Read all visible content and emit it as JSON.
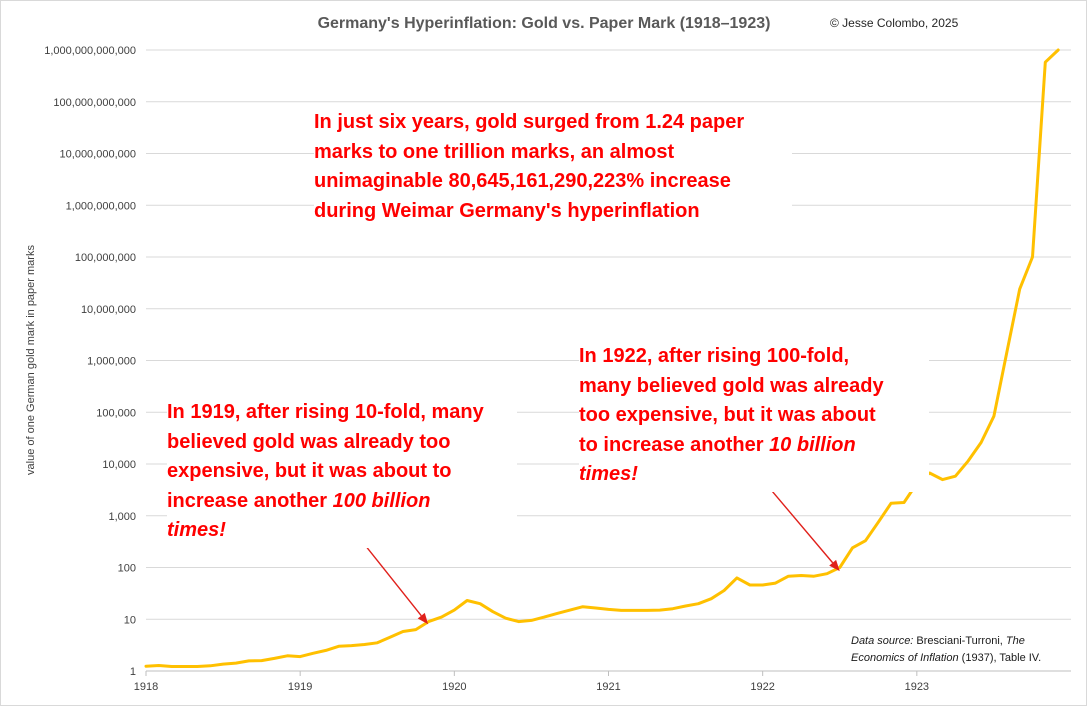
{
  "chart_data": {
    "type": "line",
    "title": "Germany's Hyperinflation: Gold vs. Paper Mark (1918–1923)",
    "credit": "© Jesse Colombo, 2025",
    "ylabel": "value of one German gold mark in paper marks",
    "xlabel": "",
    "yscale": "log",
    "ylim": [
      1,
      1000000000000
    ],
    "xlim": [
      1918,
      1924
    ],
    "grid": true,
    "legend": "none",
    "yticks": [
      {
        "value": 1,
        "label": "1"
      },
      {
        "value": 10,
        "label": "10"
      },
      {
        "value": 100,
        "label": "100"
      },
      {
        "value": 1000,
        "label": "1,000"
      },
      {
        "value": 10000,
        "label": "10,000"
      },
      {
        "value": 100000,
        "label": "100,000"
      },
      {
        "value": 1000000,
        "label": "1,000,000"
      },
      {
        "value": 10000000,
        "label": "10,000,000"
      },
      {
        "value": 100000000,
        "label": "100,000,000"
      },
      {
        "value": 1000000000,
        "label": "1,000,000,000"
      },
      {
        "value": 10000000000,
        "label": "10,000,000,000"
      },
      {
        "value": 100000000000,
        "label": "100,000,000,000"
      },
      {
        "value": 1000000000000,
        "label": "1,000,000,000,000"
      }
    ],
    "xticks": [
      {
        "value": 1918,
        "label": "1918"
      },
      {
        "value": 1919,
        "label": "1919"
      },
      {
        "value": 1920,
        "label": "1920"
      },
      {
        "value": 1921,
        "label": "1921"
      },
      {
        "value": 1922,
        "label": "1922"
      },
      {
        "value": 1923,
        "label": "1923"
      }
    ],
    "series": [
      {
        "name": "Gold mark in paper marks",
        "color": "#ffc000",
        "x": [
          1918.0,
          1918.083,
          1918.167,
          1918.25,
          1918.333,
          1918.417,
          1918.5,
          1918.583,
          1918.667,
          1918.75,
          1918.833,
          1918.917,
          1919.0,
          1919.083,
          1919.167,
          1919.25,
          1919.333,
          1919.417,
          1919.5,
          1919.583,
          1919.667,
          1919.75,
          1919.833,
          1919.917,
          1920.0,
          1920.083,
          1920.167,
          1920.25,
          1920.333,
          1920.417,
          1920.5,
          1920.583,
          1920.667,
          1920.75,
          1920.833,
          1920.917,
          1921.0,
          1921.083,
          1921.167,
          1921.25,
          1921.333,
          1921.417,
          1921.5,
          1921.583,
          1921.667,
          1921.75,
          1921.833,
          1921.917,
          1922.0,
          1922.083,
          1922.167,
          1922.25,
          1922.333,
          1922.417,
          1922.5,
          1922.583,
          1922.667,
          1922.75,
          1922.833,
          1922.917,
          1923.0,
          1923.083,
          1923.167,
          1923.25,
          1923.333,
          1923.417,
          1923.5,
          1923.583,
          1923.667,
          1923.75,
          1923.833,
          1923.917
        ],
        "values": [
          1.24,
          1.28,
          1.22,
          1.22,
          1.22,
          1.26,
          1.36,
          1.42,
          1.57,
          1.59,
          1.75,
          1.97,
          1.9,
          2.2,
          2.5,
          3.0,
          3.1,
          3.25,
          3.5,
          4.5,
          5.8,
          6.3,
          9.0,
          11.0,
          15.0,
          23.0,
          20.0,
          14.0,
          10.5,
          9.0,
          9.5,
          11.0,
          13.0,
          15.0,
          17.5,
          16.5,
          15.5,
          14.8,
          14.8,
          14.8,
          15.0,
          16.0,
          18.0,
          20.0,
          25.0,
          36.0,
          63.0,
          46.0,
          46.0,
          50.0,
          68.0,
          70.0,
          68.0,
          76.0,
          100.0,
          240.0,
          330.0,
          750.0,
          1750.0,
          1800.0,
          4200.0,
          6700.0,
          5000.0,
          5800.0,
          11500.0,
          26000.0,
          84000.0,
          1400000.0,
          24000000.0,
          100000000.0,
          580000000000.0,
          1000000000000.0
        ]
      }
    ],
    "annotations": [
      {
        "lines": [
          "In just six years, gold surged from 1.24 paper",
          "marks to one trillion marks, an almost",
          "unimaginable 80,645,161,290,223% increase",
          "during Weimar Germany's hyperinflation"
        ],
        "color": "#ff0000"
      },
      {
        "lines": [
          "In 1919, after rising 10-fold, many",
          "believed gold was already too",
          "expensive, but it was about to"
        ],
        "last_line_prefix": "increase another ",
        "last_line_italic": "100 billion",
        "tail_italic": "times!",
        "arrow_to": {
          "x": 1919.83,
          "y": 8
        },
        "color": "#ff0000"
      },
      {
        "lines": [
          "In 1922, after rising 100-fold,",
          "many believed gold was already",
          "too expensive, but it was about"
        ],
        "last_line_prefix": "to increase another ",
        "last_line_italic": "10 billion",
        "tail_italic": "times!",
        "arrow_to": {
          "x": 1922.5,
          "y": 85
        },
        "color": "#ff0000"
      }
    ],
    "source_note": {
      "label": "Data source:",
      "text_a": " Bresciani-Turroni, ",
      "italic_a": "The",
      "italic_b": "Economics of Inflation",
      "text_b": " (1937), Table IV."
    }
  }
}
